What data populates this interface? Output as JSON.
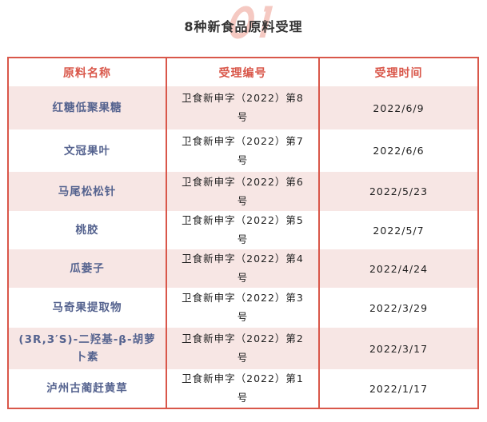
{
  "header": {
    "title": "8种新食品原料受理",
    "watermark": "01"
  },
  "colors": {
    "accent": "#d9574a",
    "row_pink": "#f7e6e4",
    "name_text": "#55638f"
  },
  "table": {
    "columns": [
      "原料名称",
      "受理编号",
      "受理时间"
    ],
    "rows": [
      {
        "name": "红糖低聚果糖",
        "code": "卫食新申字（2022）第8号",
        "date": "2022/6/9"
      },
      {
        "name": "文冠果叶",
        "code": "卫食新申字（2022）第7号",
        "date": "2022/6/6"
      },
      {
        "name": "马尾松松针",
        "code": "卫食新申字（2022）第6号",
        "date": "2022/5/23"
      },
      {
        "name": "桃胶",
        "code": "卫食新申字（2022）第5号",
        "date": "2022/5/7"
      },
      {
        "name": "瓜蒌子",
        "code": "卫食新申字（2022）第4号",
        "date": "2022/4/24"
      },
      {
        "name": "马奇果提取物",
        "code": "卫食新申字（2022）第3号",
        "date": "2022/3/29"
      },
      {
        "name": "(3R,3′S)-二羟基-β-胡萝卜素",
        "code": "卫食新申字（2022）第2号",
        "date": "2022/3/17"
      },
      {
        "name": "泸州古蔺赶黄草",
        "code": "卫食新申字（2022）第1号",
        "date": "2022/1/17"
      }
    ]
  }
}
